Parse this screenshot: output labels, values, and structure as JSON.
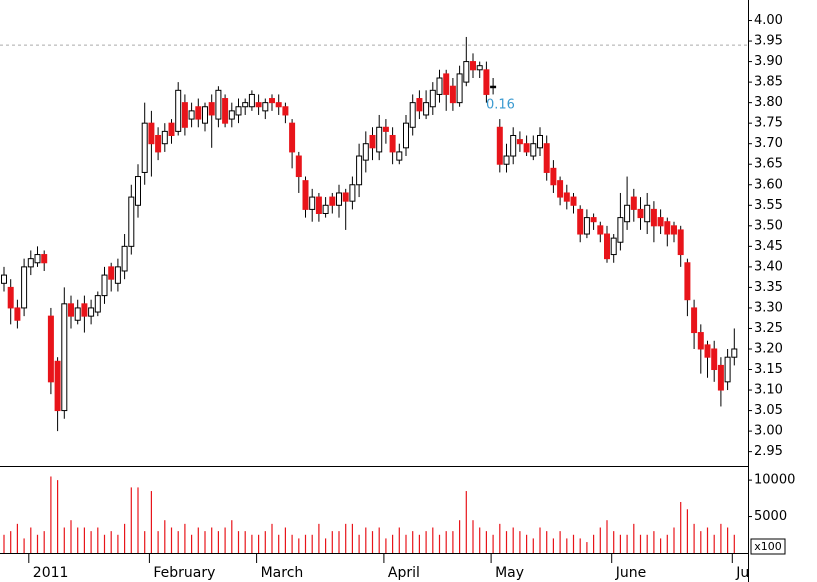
{
  "chart_data": {
    "type": "candlestick",
    "categories": [
      null,
      null,
      null,
      null,
      "2011",
      null,
      null,
      null,
      null,
      null,
      null,
      null,
      null,
      null,
      null,
      null,
      null,
      null,
      null,
      null,
      null,
      null,
      "February",
      null,
      null,
      null,
      null,
      null,
      null,
      null,
      null,
      null,
      null,
      null,
      null,
      null,
      null,
      null,
      "March",
      null,
      null,
      null,
      null,
      null,
      null,
      null,
      null,
      null,
      null,
      null,
      null,
      null,
      null,
      null,
      null,
      null,
      null,
      "April",
      null,
      null,
      null,
      null,
      null,
      null,
      null,
      null,
      null,
      null,
      null,
      null,
      null,
      null,
      null,
      "May",
      null,
      null,
      null,
      null,
      null,
      null,
      null,
      null,
      null,
      null,
      null,
      null,
      null,
      null,
      null,
      null,
      null,
      "June",
      null,
      null,
      null,
      null,
      null,
      null,
      null,
      null,
      null,
      null,
      null,
      null,
      null,
      null,
      null,
      null,
      null,
      "Ju"
    ],
    "open": [
      3.36,
      3.35,
      3.3,
      3.3,
      3.4,
      3.41,
      3.43,
      3.28,
      3.17,
      3.05,
      3.31,
      3.27,
      3.31,
      3.28,
      3.29,
      3.33,
      3.4,
      3.36,
      3.39,
      3.45,
      3.55,
      3.63,
      3.75,
      3.72,
      3.7,
      3.75,
      3.73,
      3.8,
      3.76,
      3.79,
      3.75,
      3.8,
      3.76,
      3.81,
      3.76,
      3.77,
      3.79,
      3.79,
      3.8,
      3.78,
      3.81,
      3.8,
      3.79,
      3.75,
      3.67,
      3.61,
      3.54,
      3.57,
      3.53,
      3.57,
      3.55,
      3.58,
      3.56,
      3.6,
      3.66,
      3.72,
      3.68,
      3.74,
      3.72,
      3.66,
      3.69,
      3.74,
      3.81,
      3.77,
      3.79,
      3.82,
      3.87,
      3.84,
      3.8,
      3.85,
      3.9,
      3.88,
      3.88,
      3.84,
      3.74,
      3.65,
      3.67,
      3.71,
      3.7,
      3.67,
      3.69,
      3.7,
      3.64,
      3.61,
      3.58,
      3.57,
      3.54,
      3.48,
      3.52,
      3.5,
      3.48,
      3.43,
      3.46,
      3.51,
      3.57,
      3.54,
      3.51,
      3.54,
      3.52,
      3.51,
      3.5,
      3.49,
      3.41,
      3.3,
      3.24,
      3.21,
      3.2,
      3.16,
      3.12,
      3.18
    ],
    "high": [
      3.4,
      3.37,
      3.32,
      3.42,
      3.44,
      3.45,
      3.44,
      3.3,
      3.18,
      3.35,
      3.33,
      3.32,
      3.33,
      3.32,
      3.34,
      3.4,
      3.41,
      3.42,
      3.48,
      3.6,
      3.65,
      3.8,
      3.78,
      3.74,
      3.75,
      3.76,
      3.85,
      3.82,
      3.8,
      3.81,
      3.8,
      3.82,
      3.84,
      3.82,
      3.8,
      3.81,
      3.81,
      3.83,
      3.82,
      3.81,
      3.82,
      3.82,
      3.8,
      3.76,
      3.68,
      3.62,
      3.59,
      3.58,
      3.57,
      3.58,
      3.6,
      3.59,
      3.62,
      3.7,
      3.73,
      3.74,
      3.77,
      3.76,
      3.74,
      3.7,
      3.77,
      3.82,
      3.83,
      3.83,
      3.85,
      3.88,
      3.88,
      3.86,
      3.89,
      3.96,
      3.92,
      3.9,
      3.9,
      3.86,
      3.76,
      3.7,
      3.74,
      3.73,
      3.72,
      3.72,
      3.74,
      3.72,
      3.66,
      3.62,
      3.6,
      3.58,
      3.55,
      3.54,
      3.53,
      3.51,
      3.5,
      3.48,
      3.58,
      3.62,
      3.59,
      3.57,
      3.58,
      3.56,
      3.54,
      3.52,
      3.51,
      3.5,
      3.42,
      3.32,
      3.26,
      3.22,
      3.22,
      3.18,
      3.2,
      3.25
    ],
    "low": [
      3.34,
      3.26,
      3.25,
      3.28,
      3.38,
      3.4,
      3.39,
      3.09,
      3.0,
      3.03,
      3.25,
      3.26,
      3.24,
      3.26,
      3.28,
      3.31,
      3.34,
      3.34,
      3.37,
      3.43,
      3.52,
      3.6,
      3.62,
      3.66,
      3.68,
      3.7,
      3.72,
      3.72,
      3.74,
      3.74,
      3.73,
      3.69,
      3.74,
      3.74,
      3.74,
      3.75,
      3.77,
      3.78,
      3.77,
      3.76,
      3.78,
      3.77,
      3.75,
      3.64,
      3.58,
      3.52,
      3.51,
      3.51,
      3.52,
      3.53,
      3.52,
      3.49,
      3.54,
      3.57,
      3.63,
      3.66,
      3.66,
      3.7,
      3.65,
      3.65,
      3.67,
      3.72,
      3.76,
      3.76,
      3.77,
      3.8,
      3.78,
      3.78,
      3.79,
      3.84,
      3.86,
      3.86,
      3.8,
      3.82,
      3.63,
      3.63,
      3.65,
      3.68,
      3.67,
      3.66,
      3.67,
      3.61,
      3.58,
      3.55,
      3.54,
      3.53,
      3.46,
      3.47,
      3.49,
      3.46,
      3.41,
      3.41,
      3.44,
      3.49,
      3.51,
      3.49,
      3.48,
      3.46,
      3.48,
      3.45,
      3.46,
      3.4,
      3.28,
      3.2,
      3.14,
      3.13,
      3.12,
      3.06,
      3.1,
      3.16
    ],
    "close": [
      3.38,
      3.3,
      3.27,
      3.4,
      3.42,
      3.43,
      3.41,
      3.12,
      3.05,
      3.31,
      3.28,
      3.3,
      3.28,
      3.3,
      3.33,
      3.38,
      3.37,
      3.4,
      3.45,
      3.57,
      3.62,
      3.75,
      3.7,
      3.68,
      3.73,
      3.72,
      3.83,
      3.74,
      3.78,
      3.76,
      3.79,
      3.77,
      3.83,
      3.75,
      3.78,
      3.79,
      3.8,
      3.82,
      3.79,
      3.8,
      3.8,
      3.79,
      3.77,
      3.68,
      3.62,
      3.54,
      3.57,
      3.53,
      3.55,
      3.55,
      3.58,
      3.56,
      3.6,
      3.67,
      3.7,
      3.69,
      3.74,
      3.73,
      3.68,
      3.68,
      3.75,
      3.8,
      3.78,
      3.8,
      3.83,
      3.86,
      3.82,
      3.8,
      3.87,
      3.9,
      3.88,
      3.89,
      3.82,
      3.84,
      3.65,
      3.67,
      3.72,
      3.7,
      3.68,
      3.7,
      3.72,
      3.63,
      3.6,
      3.57,
      3.56,
      3.55,
      3.48,
      3.52,
      3.51,
      3.48,
      3.42,
      3.47,
      3.52,
      3.55,
      3.54,
      3.52,
      3.55,
      3.5,
      3.5,
      3.48,
      3.48,
      3.43,
      3.32,
      3.24,
      3.2,
      3.18,
      3.15,
      3.1,
      3.18,
      3.2
    ],
    "volume": [
      2500,
      3000,
      4000,
      2000,
      3500,
      2500,
      3000,
      10500,
      10000,
      3500,
      4500,
      3500,
      3500,
      3000,
      3500,
      2500,
      3000,
      2500,
      4000,
      9000,
      9000,
      3000,
      8500,
      3000,
      4500,
      3500,
      3000,
      4000,
      2500,
      3500,
      3000,
      3500,
      3000,
      3500,
      4500,
      3000,
      3000,
      2500,
      2500,
      3000,
      4000,
      2500,
      3500,
      2500,
      2000,
      2500,
      2500,
      4000,
      2000,
      3000,
      3000,
      4000,
      4000,
      2500,
      3500,
      3000,
      3500,
      2000,
      2500,
      3500,
      2500,
      3000,
      2500,
      3000,
      3500,
      2500,
      3000,
      3000,
      4500,
      8500,
      4500,
      3500,
      3000,
      2500,
      4000,
      3000,
      3500,
      3000,
      2500,
      2000,
      3500,
      3000,
      2000,
      3000,
      2000,
      2500,
      2000,
      1500,
      2500,
      3500,
      4500,
      3000,
      2500,
      2500,
      4000,
      2500,
      2500,
      3000,
      2000,
      2500,
      3500,
      7000,
      6000,
      4000,
      3000,
      3500,
      2500,
      4000,
      3500,
      2500
    ],
    "ylim": [
      2.915,
      4.05
    ],
    "yticks": [
      2.95,
      {
        "value": 3.0,
        "label": "3.00"
      },
      3.05,
      {
        "value": 3.1,
        "label": "3.10"
      },
      3.15,
      {
        "value": 3.2,
        "label": "3.20"
      },
      3.25,
      {
        "value": 3.3,
        "label": "3.30"
      },
      3.35,
      {
        "value": 3.4,
        "label": "3.40"
      },
      3.45,
      {
        "value": 3.5,
        "label": "3.50"
      },
      3.55,
      {
        "value": 3.6,
        "label": "3.60"
      },
      3.65,
      {
        "value": 3.7,
        "label": "3.70"
      },
      3.75,
      {
        "value": 3.8,
        "label": "3.80"
      },
      3.85,
      {
        "value": 3.9,
        "label": "3.90"
      },
      3.95,
      {
        "value": 4.0,
        "label": "4.00"
      }
    ],
    "volume_ylim": [
      0,
      11800
    ],
    "volume_yticks": [
      5000,
      10000
    ],
    "volume_unit": "x100",
    "reference_line": 3.94,
    "annotation": "0.16",
    "up_color": "#ffffff",
    "down_color": "#e8141a",
    "wick_color": "#000000",
    "volume_color": "#e8141a",
    "annotation_color": "#3a9ad0"
  }
}
